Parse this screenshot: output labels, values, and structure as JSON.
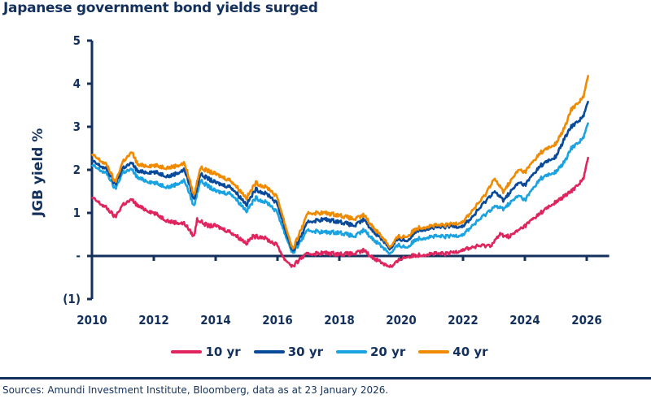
{
  "title": "Japanese government bond yields surged",
  "source": "Sources: Amundi Investment Institute, Bloomberg, data as at 23 January 2026.",
  "chart_data": {
    "type": "line",
    "title": "Japanese government bond yields surged",
    "xlabel": "",
    "ylabel": "JGB  yield %",
    "xlim": [
      2010,
      2026.2
    ],
    "ylim": [
      -1,
      5
    ],
    "x_ticks": [
      2010,
      2012,
      2014,
      2016,
      2018,
      2020,
      2022,
      2024,
      2026
    ],
    "x_tick_labels": [
      "2010",
      "2012",
      "2014",
      "2016",
      "2018",
      "2020",
      "2022",
      "2024",
      "2026"
    ],
    "y_ticks": [
      5,
      4,
      3,
      2,
      1,
      0,
      -1
    ],
    "y_tick_labels": [
      "5",
      "4",
      "3",
      "2",
      "1",
      "-",
      "(1)"
    ],
    "grid": false,
    "legend_position": "bottom",
    "series": [
      {
        "name": "10 yr",
        "color": "#e0245e",
        "points": [
          [
            2010,
            1.35
          ],
          [
            2010.5,
            1.1
          ],
          [
            2010.75,
            0.9
          ],
          [
            2011,
            1.2
          ],
          [
            2011.3,
            1.3
          ],
          [
            2011.5,
            1.15
          ],
          [
            2012,
            1.0
          ],
          [
            2012.5,
            0.8
          ],
          [
            2013,
            0.75
          ],
          [
            2013.3,
            0.45
          ],
          [
            2013.4,
            0.85
          ],
          [
            2013.75,
            0.7
          ],
          [
            2014,
            0.7
          ],
          [
            2014.5,
            0.55
          ],
          [
            2015,
            0.3
          ],
          [
            2015.2,
            0.45
          ],
          [
            2015.5,
            0.45
          ],
          [
            2015.75,
            0.35
          ],
          [
            2016,
            0.25
          ],
          [
            2016.2,
            -0.05
          ],
          [
            2016.5,
            -0.25
          ],
          [
            2016.75,
            -0.05
          ],
          [
            2017,
            0.05
          ],
          [
            2017.5,
            0.07
          ],
          [
            2018,
            0.05
          ],
          [
            2018.5,
            0.05
          ],
          [
            2018.8,
            0.13
          ],
          [
            2019,
            0.0
          ],
          [
            2019.5,
            -0.2
          ],
          [
            2019.7,
            -0.25
          ],
          [
            2020,
            -0.05
          ],
          [
            2020.5,
            0.02
          ],
          [
            2021,
            0.05
          ],
          [
            2021.5,
            0.05
          ],
          [
            2022,
            0.15
          ],
          [
            2022.5,
            0.23
          ],
          [
            2022.9,
            0.25
          ],
          [
            2023.2,
            0.5
          ],
          [
            2023.5,
            0.45
          ],
          [
            2024,
            0.7
          ],
          [
            2024.5,
            1.0
          ],
          [
            2025,
            1.25
          ],
          [
            2025.5,
            1.5
          ],
          [
            2025.9,
            1.8
          ],
          [
            2026.05,
            2.3
          ]
        ]
      },
      {
        "name": "20 yr",
        "color": "#1aa3e0",
        "points": [
          [
            2010,
            2.1
          ],
          [
            2010.5,
            1.9
          ],
          [
            2010.75,
            1.55
          ],
          [
            2011,
            1.95
          ],
          [
            2011.3,
            2.0
          ],
          [
            2011.5,
            1.8
          ],
          [
            2012,
            1.7
          ],
          [
            2012.5,
            1.6
          ],
          [
            2013,
            1.75
          ],
          [
            2013.3,
            1.15
          ],
          [
            2013.5,
            1.75
          ],
          [
            2014,
            1.5
          ],
          [
            2014.5,
            1.45
          ],
          [
            2015,
            1.05
          ],
          [
            2015.3,
            1.35
          ],
          [
            2015.75,
            1.2
          ],
          [
            2016,
            1.0
          ],
          [
            2016.3,
            0.4
          ],
          [
            2016.5,
            0.05
          ],
          [
            2016.75,
            0.35
          ],
          [
            2017,
            0.6
          ],
          [
            2017.5,
            0.55
          ],
          [
            2018,
            0.55
          ],
          [
            2018.5,
            0.45
          ],
          [
            2018.8,
            0.6
          ],
          [
            2019,
            0.45
          ],
          [
            2019.5,
            0.15
          ],
          [
            2019.65,
            0.05
          ],
          [
            2019.9,
            0.25
          ],
          [
            2020.2,
            0.2
          ],
          [
            2020.5,
            0.4
          ],
          [
            2021,
            0.45
          ],
          [
            2021.5,
            0.45
          ],
          [
            2022,
            0.5
          ],
          [
            2022.3,
            0.7
          ],
          [
            2022.7,
            0.95
          ],
          [
            2023,
            1.15
          ],
          [
            2023.3,
            1.1
          ],
          [
            2023.8,
            1.4
          ],
          [
            2024,
            1.3
          ],
          [
            2024.5,
            1.8
          ],
          [
            2025,
            1.95
          ],
          [
            2025.3,
            2.2
          ],
          [
            2025.5,
            2.5
          ],
          [
            2025.9,
            2.75
          ],
          [
            2026.05,
            3.1
          ]
        ]
      },
      {
        "name": "30 yr",
        "color": "#0a4a9a",
        "points": [
          [
            2010,
            2.2
          ],
          [
            2010.5,
            2.0
          ],
          [
            2010.75,
            1.65
          ],
          [
            2011,
            2.05
          ],
          [
            2011.3,
            2.15
          ],
          [
            2011.5,
            1.95
          ],
          [
            2012,
            1.95
          ],
          [
            2012.5,
            1.85
          ],
          [
            2013,
            2.0
          ],
          [
            2013.3,
            1.3
          ],
          [
            2013.5,
            1.9
          ],
          [
            2014,
            1.7
          ],
          [
            2014.5,
            1.6
          ],
          [
            2015,
            1.2
          ],
          [
            2015.3,
            1.55
          ],
          [
            2015.75,
            1.4
          ],
          [
            2016,
            1.2
          ],
          [
            2016.3,
            0.5
          ],
          [
            2016.5,
            0.1
          ],
          [
            2016.75,
            0.45
          ],
          [
            2017,
            0.8
          ],
          [
            2017.5,
            0.85
          ],
          [
            2018,
            0.8
          ],
          [
            2018.5,
            0.7
          ],
          [
            2018.8,
            0.85
          ],
          [
            2019,
            0.65
          ],
          [
            2019.5,
            0.3
          ],
          [
            2019.65,
            0.15
          ],
          [
            2019.9,
            0.4
          ],
          [
            2020.2,
            0.35
          ],
          [
            2020.5,
            0.6
          ],
          [
            2021,
            0.65
          ],
          [
            2021.5,
            0.68
          ],
          [
            2022,
            0.7
          ],
          [
            2022.3,
            0.9
          ],
          [
            2022.7,
            1.25
          ],
          [
            2023,
            1.5
          ],
          [
            2023.3,
            1.3
          ],
          [
            2023.8,
            1.7
          ],
          [
            2024,
            1.65
          ],
          [
            2024.5,
            2.1
          ],
          [
            2025,
            2.3
          ],
          [
            2025.3,
            2.75
          ],
          [
            2025.5,
            3.0
          ],
          [
            2025.9,
            3.25
          ],
          [
            2026.05,
            3.6
          ]
        ]
      },
      {
        "name": "40 yr",
        "color": "#f08a00",
        "points": [
          [
            2010,
            2.35
          ],
          [
            2010.5,
            2.1
          ],
          [
            2010.75,
            1.7
          ],
          [
            2011,
            2.2
          ],
          [
            2011.3,
            2.4
          ],
          [
            2011.5,
            2.1
          ],
          [
            2012,
            2.1
          ],
          [
            2012.5,
            2.05
          ],
          [
            2013,
            2.15
          ],
          [
            2013.3,
            1.4
          ],
          [
            2013.5,
            2.05
          ],
          [
            2014,
            1.9
          ],
          [
            2014.5,
            1.75
          ],
          [
            2015,
            1.35
          ],
          [
            2015.3,
            1.7
          ],
          [
            2015.75,
            1.55
          ],
          [
            2016,
            1.35
          ],
          [
            2016.3,
            0.6
          ],
          [
            2016.5,
            0.15
          ],
          [
            2016.75,
            0.6
          ],
          [
            2017,
            1.0
          ],
          [
            2017.5,
            1.0
          ],
          [
            2018,
            0.95
          ],
          [
            2018.5,
            0.85
          ],
          [
            2018.8,
            0.95
          ],
          [
            2019,
            0.75
          ],
          [
            2019.5,
            0.35
          ],
          [
            2019.65,
            0.2
          ],
          [
            2019.9,
            0.45
          ],
          [
            2020.2,
            0.45
          ],
          [
            2020.5,
            0.65
          ],
          [
            2021,
            0.7
          ],
          [
            2021.5,
            0.72
          ],
          [
            2022,
            0.8
          ],
          [
            2022.3,
            1.05
          ],
          [
            2022.7,
            1.4
          ],
          [
            2023,
            1.8
          ],
          [
            2023.3,
            1.5
          ],
          [
            2023.8,
            2.0
          ],
          [
            2024,
            1.95
          ],
          [
            2024.5,
            2.4
          ],
          [
            2025,
            2.6
          ],
          [
            2025.3,
            3.0
          ],
          [
            2025.5,
            3.4
          ],
          [
            2025.9,
            3.7
          ],
          [
            2026.05,
            4.2
          ]
        ]
      }
    ],
    "legend": [
      {
        "label": "10 yr",
        "color": "#e0245e"
      },
      {
        "label": "30 yr",
        "color": "#0a4a9a"
      },
      {
        "label": "20 yr",
        "color": "#1aa3e0"
      },
      {
        "label": "40 yr",
        "color": "#f08a00"
      }
    ]
  }
}
